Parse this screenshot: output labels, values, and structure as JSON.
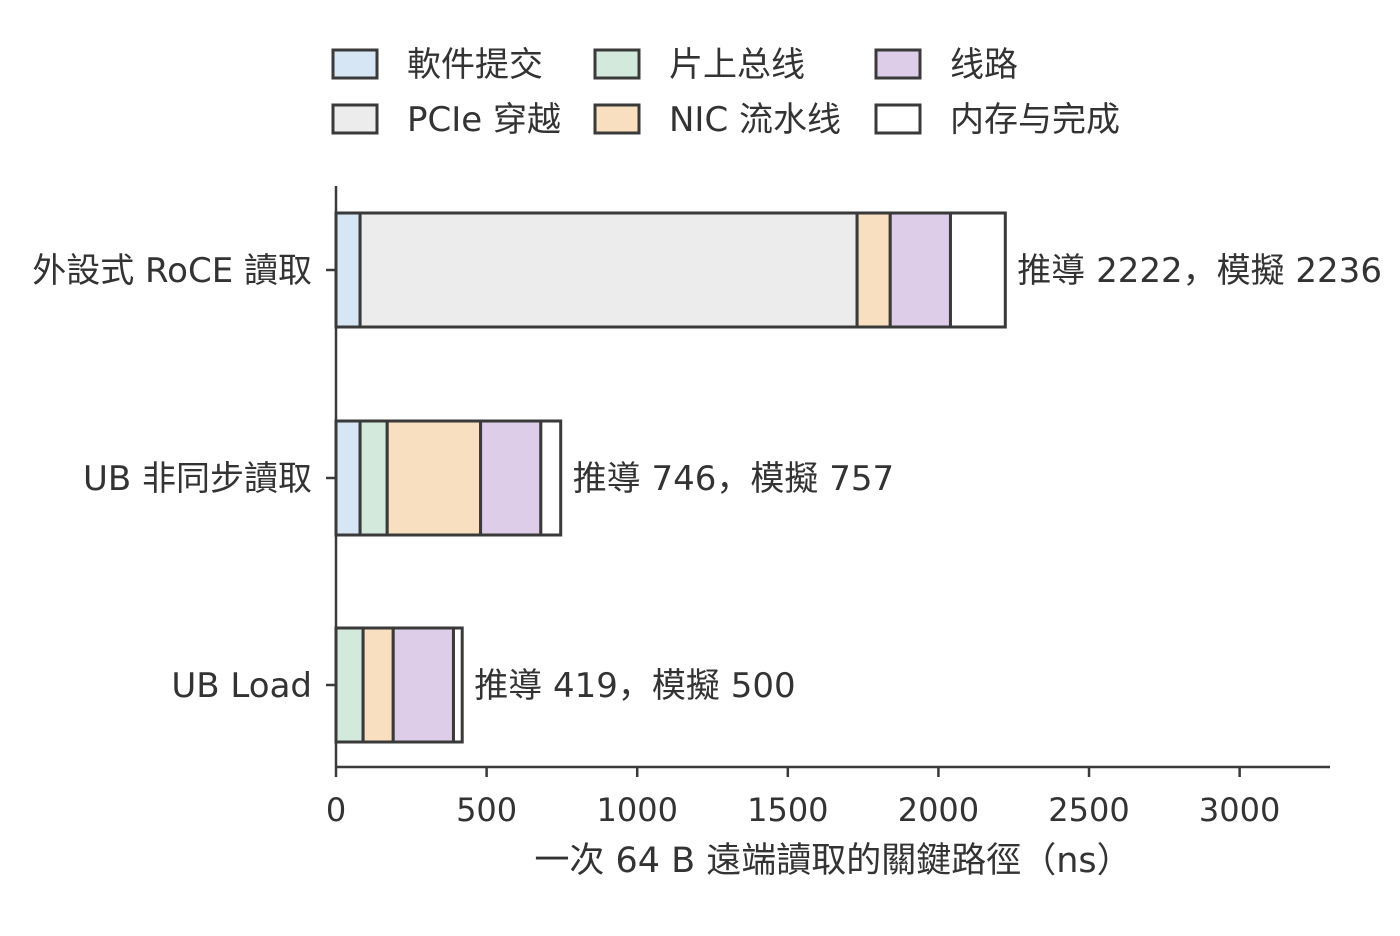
{
  "chart_data": {
    "type": "bar",
    "orientation": "horizontal",
    "stacked": true,
    "xlabel": "一次 64 B 遠端讀取的關鍵路徑（ns）",
    "ylabel": "",
    "title": "",
    "xlim": [
      0,
      3300
    ],
    "xticks": [
      0,
      500,
      1000,
      1500,
      2000,
      2500,
      3000
    ],
    "legend_position": "top",
    "grid": false,
    "categories": [
      "外設式 RoCE 讀取",
      "UB 非同步讀取",
      "UB Load"
    ],
    "series": [
      {
        "name": "軟件提交",
        "color": "#d6e6f4",
        "values": [
          80,
          80,
          0
        ]
      },
      {
        "name": "PCIe 穿越",
        "color": "#ececec",
        "values": [
          1650,
          0,
          0
        ]
      },
      {
        "name": "片上总线",
        "color": "#d3e9dc",
        "values": [
          0,
          90,
          90
        ]
      },
      {
        "name": "NIC 流水线",
        "color": "#f8dfc0",
        "values": [
          110,
          310,
          100
        ]
      },
      {
        "name": "线路",
        "color": "#ddcde8",
        "values": [
          200,
          200,
          200
        ]
      },
      {
        "name": "内存与完成",
        "color": "#ffffff",
        "values": [
          182,
          66,
          29
        ]
      }
    ],
    "legend_order": [
      "軟件提交",
      "片上总线",
      "线路",
      "PCIe 穿越",
      "NIC 流水线",
      "内存与完成"
    ],
    "annotations": [
      "推導 2222，模擬 2236",
      "推導 746，模擬 757",
      "推導 419，模擬 500"
    ]
  }
}
